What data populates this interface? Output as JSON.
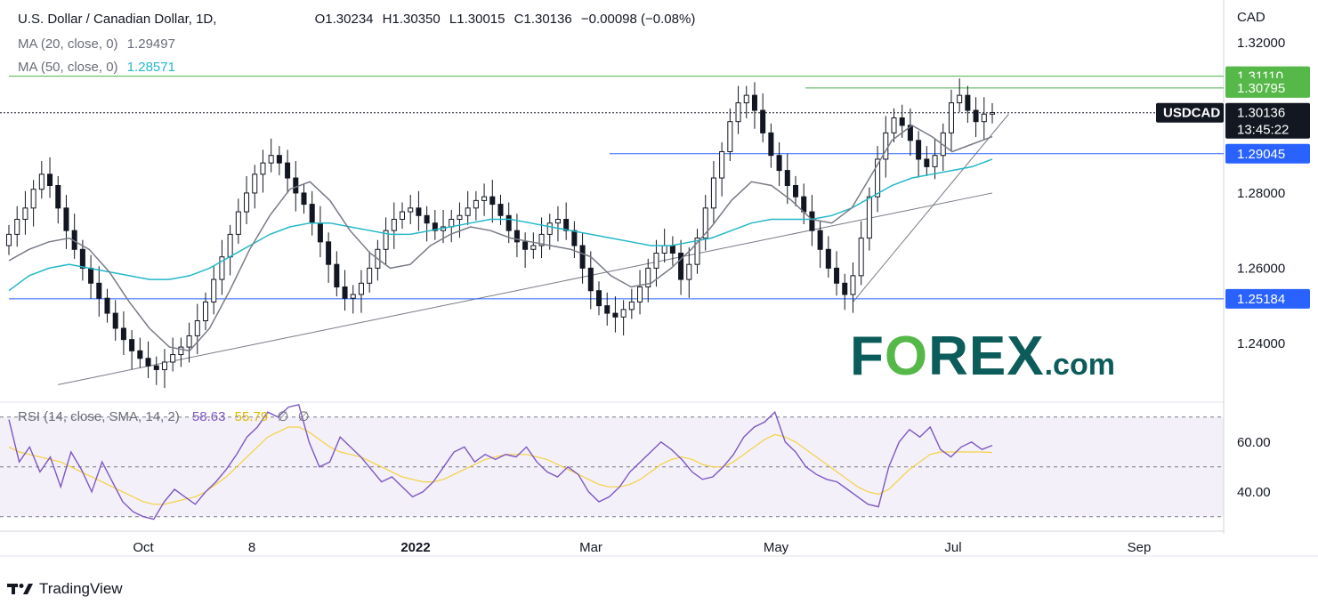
{
  "header": {
    "symbol_title": "U.S. Dollar / Canadian Dollar, 1D,",
    "ohlc": {
      "open": "O1.30234",
      "high": "H1.30350",
      "low": "L1.30015",
      "close": "C1.30136",
      "change": "−0.00098 (−0.08%)"
    },
    "ma20": {
      "label": "MA (20, close, 0)",
      "value": "1.29497"
    },
    "ma50": {
      "label": "MA (50, close, 0)",
      "value": "1.28571"
    }
  },
  "colors": {
    "up": "#26a69a",
    "down": "#ef5350",
    "candle": "#131722",
    "ma20": "#787b86",
    "ma50": "#22b8c8",
    "green_line": "#4caf50",
    "blue_line": "#2962ff",
    "rsi": "#7e57c2",
    "rsi_ma": "#f5d142",
    "forex_dark": "#0b5c5a",
    "forex_green": "#55b848"
  },
  "rsi_legend": {
    "label": "RSI (14, close, SMA, 14, 2)",
    "rsi_value": "58.63",
    "ma_value": "55.79",
    "extra1": "∅",
    "extra2": "∅"
  },
  "price_axis": {
    "currency": "CAD",
    "ticks": [
      "1.32000",
      "1.28000",
      "1.26000",
      "1.24000"
    ],
    "rsi_ticks": [
      "60.00",
      "40.00"
    ]
  },
  "price_labels": {
    "resistance_high": "1.31110",
    "resistance_low": "1.30795",
    "symbol": "USDCAD",
    "last_price": "1.30136",
    "countdown": "13:45:22",
    "mid_support": "1.29045",
    "support": "1.25184"
  },
  "time_axis": [
    "Oct",
    "8",
    "2022",
    "Mar",
    "May",
    "Jul",
    "Sep"
  ],
  "watermark": {
    "text_left": "F",
    "text_o": "O",
    "text_right": "REX",
    "suffix": ".com"
  },
  "branding": {
    "name": "TradingView"
  },
  "chart_data": {
    "type": "candlestick",
    "title": "U.S. Dollar / Canadian Dollar, 1D",
    "y_range": [
      1.226,
      1.329
    ],
    "rsi_range": [
      26,
      76
    ],
    "closes": [
      1.269,
      1.273,
      1.276,
      1.281,
      1.285,
      1.282,
      1.276,
      1.27,
      1.265,
      1.26,
      1.256,
      1.252,
      1.248,
      1.244,
      1.241,
      1.238,
      1.236,
      1.234,
      1.233,
      1.235,
      1.237,
      1.239,
      1.242,
      1.246,
      1.251,
      1.257,
      1.263,
      1.269,
      1.275,
      1.28,
      1.285,
      1.288,
      1.29,
      1.288,
      1.284,
      1.28,
      1.277,
      1.272,
      1.267,
      1.261,
      1.255,
      1.252,
      1.253,
      1.256,
      1.26,
      1.265,
      1.27,
      1.273,
      1.275,
      1.276,
      1.274,
      1.272,
      1.27,
      1.271,
      1.273,
      1.274,
      1.276,
      1.278,
      1.279,
      1.277,
      1.274,
      1.27,
      1.267,
      1.265,
      1.266,
      1.269,
      1.272,
      1.273,
      1.27,
      1.266,
      1.26,
      1.254,
      1.25,
      1.248,
      1.247,
      1.249,
      1.251,
      1.255,
      1.26,
      1.264,
      1.266,
      1.264,
      1.257,
      1.261,
      1.268,
      1.276,
      1.284,
      1.291,
      1.299,
      1.304,
      1.306,
      1.302,
      1.296,
      1.29,
      1.286,
      1.282,
      1.279,
      1.275,
      1.27,
      1.265,
      1.26,
      1.256,
      1.253,
      1.258,
      1.268,
      1.279,
      1.289,
      1.296,
      1.3,
      1.298,
      1.294,
      1.289,
      1.287,
      1.29,
      1.296,
      1.304,
      1.306,
      1.302,
      1.299,
      1.301,
      1.3014
    ],
    "ma20": [
      1.262,
      1.265,
      1.267,
      1.268,
      1.265,
      1.259,
      1.251,
      1.244,
      1.239,
      1.238,
      1.244,
      1.254,
      1.265,
      1.274,
      1.281,
      1.283,
      1.278,
      1.27,
      1.264,
      1.26,
      1.261,
      1.266,
      1.269,
      1.271,
      1.27,
      1.268,
      1.267,
      1.266,
      1.265,
      1.263,
      1.258,
      1.255,
      1.256,
      1.26,
      1.265,
      1.271,
      1.278,
      1.283,
      1.282,
      1.278,
      1.273,
      1.272,
      1.276,
      1.285,
      1.294,
      1.298,
      1.295,
      1.291,
      1.293,
      1.295
    ],
    "ma50": [
      1.254,
      1.258,
      1.26,
      1.261,
      1.26,
      1.259,
      1.258,
      1.257,
      1.257,
      1.258,
      1.26,
      1.263,
      1.266,
      1.269,
      1.271,
      1.272,
      1.272,
      1.271,
      1.27,
      1.269,
      1.269,
      1.27,
      1.271,
      1.272,
      1.273,
      1.273,
      1.272,
      1.271,
      1.27,
      1.269,
      1.268,
      1.267,
      1.266,
      1.266,
      1.267,
      1.268,
      1.27,
      1.272,
      1.273,
      1.273,
      1.273,
      1.274,
      1.276,
      1.279,
      1.282,
      1.284,
      1.285,
      1.286,
      1.287,
      1.289
    ],
    "rsi": [
      69,
      52,
      58,
      48,
      54,
      42,
      56,
      49,
      40,
      52,
      44,
      36,
      32,
      30,
      29,
      36,
      41,
      38,
      35,
      40,
      44,
      49,
      55,
      62,
      66,
      72,
      70,
      74,
      75,
      60,
      50,
      52,
      62,
      58,
      54,
      49,
      44,
      46,
      42,
      38,
      40,
      44,
      50,
      56,
      58,
      52,
      55,
      53,
      55,
      54,
      58,
      52,
      48,
      46,
      50,
      47,
      40,
      36,
      38,
      42,
      48,
      52,
      56,
      60,
      57,
      53,
      48,
      45,
      46,
      50,
      55,
      62,
      66,
      68,
      72,
      60,
      56,
      50,
      47,
      45,
      44,
      41,
      38,
      35,
      34,
      50,
      60,
      65,
      62,
      66,
      57,
      54,
      58,
      60,
      57,
      58.63
    ],
    "rsi_ma": [
      58,
      56,
      55,
      54,
      53,
      52,
      50,
      48,
      46,
      44,
      42,
      40,
      38,
      36,
      35,
      35,
      36,
      37,
      38,
      40,
      43,
      46,
      50,
      54,
      58,
      62,
      64,
      66,
      66,
      64,
      61,
      58,
      56,
      55,
      54,
      52,
      50,
      48,
      46,
      45,
      44,
      44,
      45,
      47,
      49,
      51,
      53,
      54,
      55,
      55,
      55,
      54,
      53,
      51,
      49,
      47,
      45,
      43,
      42,
      42,
      43,
      45,
      48,
      51,
      53,
      54,
      53,
      51,
      50,
      50,
      52,
      55,
      58,
      61,
      63,
      62,
      60,
      57,
      54,
      51,
      48,
      45,
      42,
      40,
      39,
      41,
      45,
      49,
      52,
      55,
      56,
      56,
      56,
      56,
      56,
      55.79
    ],
    "levels": {
      "resistance_high": 1.3111,
      "resistance_low": 1.30795,
      "last": 1.30136,
      "mid_support": 1.29045,
      "support": 1.25184
    }
  }
}
